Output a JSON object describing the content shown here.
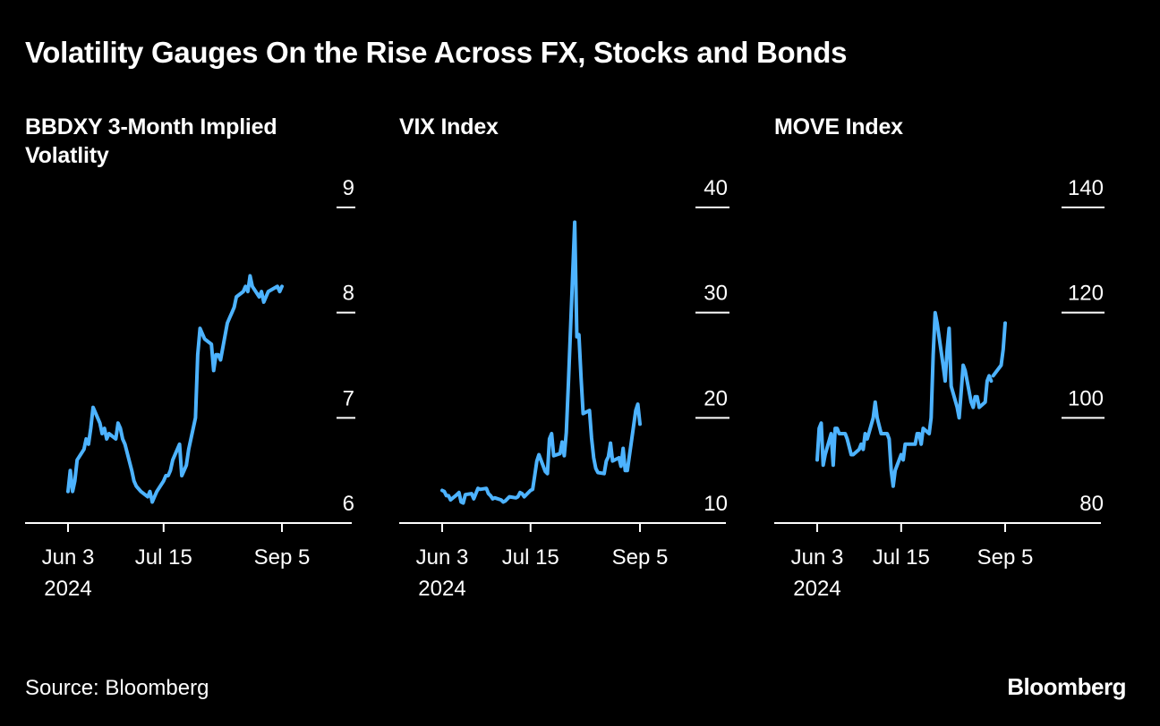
{
  "title": "Volatility Gauges On the Rise Across FX, Stocks and Bonds",
  "source": "Source: Bloomberg",
  "brand": "Bloomberg",
  "colors": {
    "background": "#000000",
    "line": "#4db3ff",
    "text": "#ffffff"
  },
  "chart_data": [
    {
      "type": "line",
      "title": "BBDXY 3-Month Implied Volatlity",
      "title_lines": [
        "BBDXY 3-Month Implied",
        "Volatlity"
      ],
      "y_axis": "right",
      "ylim": [
        6,
        9
      ],
      "yticks": [
        6,
        7,
        8,
        9
      ],
      "xlim": [
        "2024-05-30",
        "2024-10-10"
      ],
      "xticks": [
        {
          "date": "2024-06-03",
          "label": "Jun 3",
          "sublabel": "2024"
        },
        {
          "date": "2024-07-15",
          "label": "Jul 15",
          "sublabel": ""
        },
        {
          "date": "2024-09-05",
          "label": "Sep 5",
          "sublabel": ""
        }
      ],
      "x": [
        "2024-06-03",
        "2024-06-04",
        "2024-06-05",
        "2024-06-06",
        "2024-06-07",
        "2024-06-10",
        "2024-06-11",
        "2024-06-12",
        "2024-06-13",
        "2024-06-14",
        "2024-06-17",
        "2024-06-18",
        "2024-06-19",
        "2024-06-20",
        "2024-06-21",
        "2024-06-24",
        "2024-06-25",
        "2024-06-26",
        "2024-06-27",
        "2024-06-28",
        "2024-07-01",
        "2024-07-02",
        "2024-07-03",
        "2024-07-05",
        "2024-07-08",
        "2024-07-09",
        "2024-07-10",
        "2024-07-11",
        "2024-07-12",
        "2024-07-15",
        "2024-07-16",
        "2024-07-17",
        "2024-07-18",
        "2024-07-19",
        "2024-07-22",
        "2024-07-23",
        "2024-07-24",
        "2024-07-25",
        "2024-07-26",
        "2024-07-29",
        "2024-07-30",
        "2024-07-31",
        "2024-08-01",
        "2024-08-02",
        "2024-08-05",
        "2024-08-06",
        "2024-08-07",
        "2024-08-08",
        "2024-08-09",
        "2024-08-12",
        "2024-08-13",
        "2024-08-14",
        "2024-08-15",
        "2024-08-16",
        "2024-08-19",
        "2024-08-20",
        "2024-08-21",
        "2024-08-22",
        "2024-08-23",
        "2024-08-26",
        "2024-08-27",
        "2024-08-28",
        "2024-08-29",
        "2024-08-30",
        "2024-09-03",
        "2024-09-04",
        "2024-09-05"
      ],
      "series": [
        {
          "values": [
            6.3,
            6.5,
            6.3,
            6.4,
            6.6,
            6.7,
            6.8,
            6.75,
            6.9,
            7.1,
            6.95,
            6.85,
            6.9,
            6.8,
            6.85,
            6.8,
            6.95,
            6.9,
            6.8,
            6.75,
            6.5,
            6.4,
            6.35,
            6.3,
            6.25,
            6.3,
            6.2,
            6.25,
            6.3,
            6.4,
            6.45,
            6.45,
            6.5,
            6.6,
            6.75,
            6.45,
            6.5,
            6.55,
            6.7,
            7.0,
            7.6,
            7.85,
            7.8,
            7.75,
            7.7,
            7.45,
            7.6,
            7.6,
            7.55,
            7.9,
            7.95,
            8.0,
            8.05,
            8.15,
            8.2,
            8.25,
            8.2,
            8.35,
            8.25,
            8.15,
            8.2,
            8.1,
            8.15,
            8.2,
            8.25,
            8.2,
            8.25
          ]
        }
      ]
    },
    {
      "type": "line",
      "title": "VIX Index",
      "title_lines": [
        "VIX Index"
      ],
      "y_axis": "right",
      "ylim": [
        10,
        40
      ],
      "yticks": [
        10,
        20,
        30,
        40
      ],
      "xlim": [
        "2024-05-30",
        "2024-10-10"
      ],
      "xticks": [
        {
          "date": "2024-06-03",
          "label": "Jun 3",
          "sublabel": "2024"
        },
        {
          "date": "2024-07-15",
          "label": "Jul 15",
          "sublabel": ""
        },
        {
          "date": "2024-09-05",
          "label": "Sep 5",
          "sublabel": ""
        }
      ],
      "x": [
        "2024-06-03",
        "2024-06-04",
        "2024-06-05",
        "2024-06-06",
        "2024-06-07",
        "2024-06-10",
        "2024-06-11",
        "2024-06-12",
        "2024-06-13",
        "2024-06-14",
        "2024-06-17",
        "2024-06-18",
        "2024-06-20",
        "2024-06-21",
        "2024-06-24",
        "2024-06-25",
        "2024-06-26",
        "2024-06-27",
        "2024-06-28",
        "2024-07-01",
        "2024-07-02",
        "2024-07-03",
        "2024-07-05",
        "2024-07-08",
        "2024-07-09",
        "2024-07-10",
        "2024-07-11",
        "2024-07-12",
        "2024-07-15",
        "2024-07-16",
        "2024-07-17",
        "2024-07-18",
        "2024-07-19",
        "2024-07-22",
        "2024-07-23",
        "2024-07-24",
        "2024-07-25",
        "2024-07-26",
        "2024-07-29",
        "2024-07-30",
        "2024-07-31",
        "2024-08-01",
        "2024-08-02",
        "2024-08-05",
        "2024-08-06",
        "2024-08-07",
        "2024-08-08",
        "2024-08-09",
        "2024-08-12",
        "2024-08-13",
        "2024-08-14",
        "2024-08-15",
        "2024-08-16",
        "2024-08-19",
        "2024-08-20",
        "2024-08-21",
        "2024-08-22",
        "2024-08-23",
        "2024-08-26",
        "2024-08-27",
        "2024-08-28",
        "2024-08-29",
        "2024-08-30",
        "2024-09-03",
        "2024-09-04",
        "2024-09-05"
      ],
      "series": [
        {
          "values": [
            13.1,
            13.0,
            12.6,
            12.6,
            12.2,
            12.7,
            12.9,
            12.0,
            11.9,
            12.7,
            12.8,
            12.3,
            13.3,
            13.2,
            13.3,
            12.8,
            12.6,
            12.3,
            12.4,
            12.2,
            12.0,
            12.1,
            12.5,
            12.4,
            12.5,
            12.9,
            12.8,
            12.5,
            13.1,
            13.2,
            14.5,
            15.9,
            16.5,
            14.9,
            14.7,
            18.0,
            18.5,
            16.4,
            16.6,
            17.7,
            16.4,
            18.6,
            23.4,
            38.6,
            27.7,
            27.9,
            23.8,
            20.4,
            20.7,
            18.1,
            16.2,
            15.2,
            14.8,
            14.7,
            15.9,
            16.3,
            17.6,
            15.9,
            16.2,
            15.4,
            17.1,
            15.0,
            15.0,
            20.7,
            21.3,
            19.4
          ]
        }
      ]
    },
    {
      "type": "line",
      "title": "MOVE Index",
      "title_lines": [
        "MOVE Index"
      ],
      "y_axis": "right",
      "ylim": [
        80,
        140
      ],
      "yticks": [
        80,
        100,
        120,
        140
      ],
      "xlim": [
        "2024-05-30",
        "2024-10-10"
      ],
      "xticks": [
        {
          "date": "2024-06-03",
          "label": "Jun 3",
          "sublabel": "2024"
        },
        {
          "date": "2024-07-15",
          "label": "Jul 15",
          "sublabel": ""
        },
        {
          "date": "2024-09-05",
          "label": "Sep 5",
          "sublabel": ""
        }
      ],
      "x": [
        "2024-06-03",
        "2024-06-04",
        "2024-06-05",
        "2024-06-06",
        "2024-06-07",
        "2024-06-10",
        "2024-06-11",
        "2024-06-12",
        "2024-06-13",
        "2024-06-14",
        "2024-06-17",
        "2024-06-18",
        "2024-06-20",
        "2024-06-21",
        "2024-06-24",
        "2024-06-25",
        "2024-06-26",
        "2024-06-27",
        "2024-06-28",
        "2024-07-01",
        "2024-07-02",
        "2024-07-03",
        "2024-07-05",
        "2024-07-08",
        "2024-07-09",
        "2024-07-10",
        "2024-07-11",
        "2024-07-12",
        "2024-07-15",
        "2024-07-16",
        "2024-07-17",
        "2024-07-18",
        "2024-07-19",
        "2024-07-22",
        "2024-07-23",
        "2024-07-24",
        "2024-07-25",
        "2024-07-26",
        "2024-07-29",
        "2024-07-30",
        "2024-07-31",
        "2024-08-01",
        "2024-08-02",
        "2024-08-05",
        "2024-08-06",
        "2024-08-07",
        "2024-08-08",
        "2024-08-09",
        "2024-08-12",
        "2024-08-13",
        "2024-08-14",
        "2024-08-15",
        "2024-08-16",
        "2024-08-19",
        "2024-08-20",
        "2024-08-21",
        "2024-08-22",
        "2024-08-23",
        "2024-08-26",
        "2024-08-27",
        "2024-08-28",
        "2024-08-29",
        "2024-08-30",
        "2024-09-03",
        "2024-09-04",
        "2024-09-05"
      ],
      "series": [
        {
          "values": [
            92,
            98,
            99,
            91,
            93,
            97,
            91,
            98,
            98,
            97,
            97,
            96,
            93,
            93,
            94,
            95,
            94,
            97,
            96,
            100,
            103,
            100,
            97,
            97,
            96,
            90,
            87,
            90,
            93,
            92,
            95,
            95,
            95,
            95,
            97,
            97,
            95,
            98,
            97,
            100,
            112,
            120,
            118,
            110,
            107,
            113,
            117,
            106,
            102,
            100,
            105,
            110,
            109,
            103,
            102,
            104,
            104,
            102,
            103,
            107,
            108,
            107,
            108,
            110,
            113,
            118
          ]
        }
      ],
      "gap_after_index": 61
    }
  ]
}
